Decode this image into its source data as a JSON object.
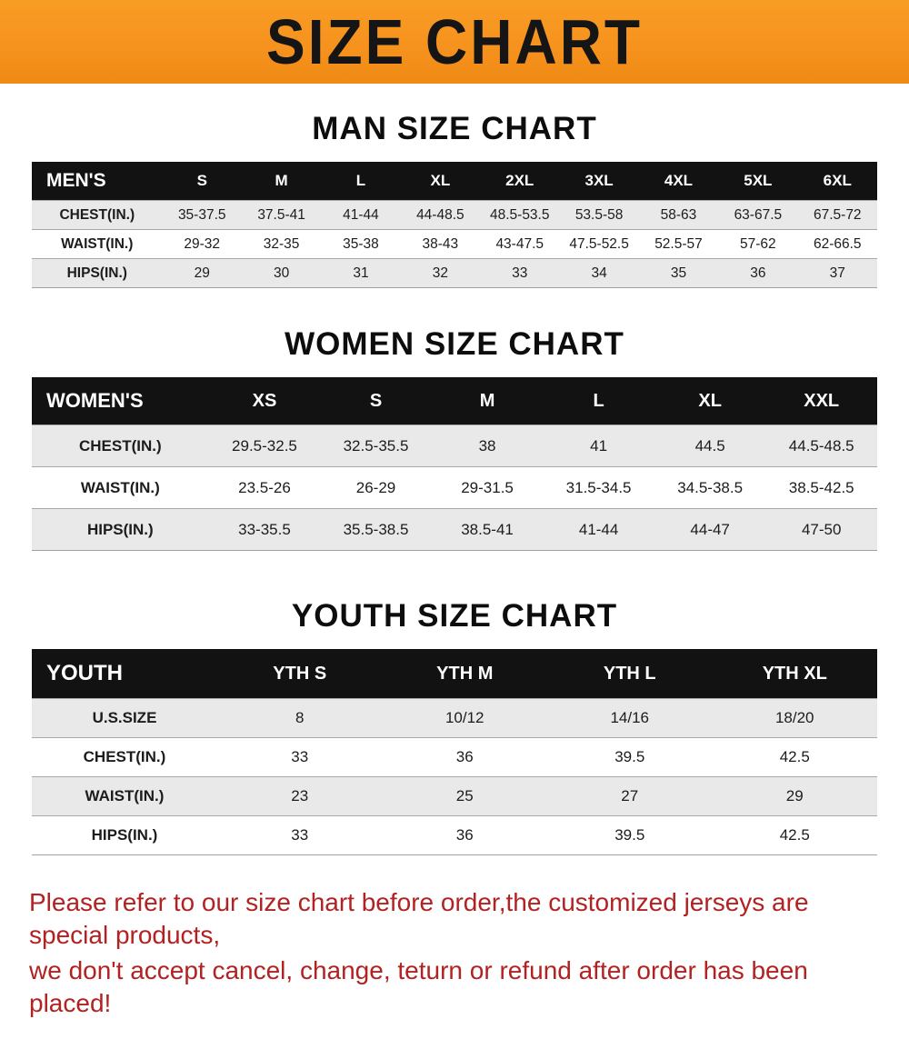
{
  "banner": {
    "title": "SIZE CHART",
    "bg_color": "#f6921e",
    "title_color": "#151515"
  },
  "chart_data": [
    {
      "type": "table",
      "title": "MAN SIZE CHART",
      "columns": [
        "MEN'S",
        "S",
        "M",
        "L",
        "XL",
        "2XL",
        "3XL",
        "4XL",
        "5XL",
        "6XL"
      ],
      "rows": [
        [
          "CHEST(IN.)",
          "35-37.5",
          "37.5-41",
          "41-44",
          "44-48.5",
          "48.5-53.5",
          "53.5-58",
          "58-63",
          "63-67.5",
          "67.5-72"
        ],
        [
          "WAIST(IN.)",
          "29-32",
          "32-35",
          "35-38",
          "38-43",
          "43-47.5",
          "47.5-52.5",
          "52.5-57",
          "57-62",
          "62-66.5"
        ],
        [
          "HIPS(IN.)",
          "29",
          "30",
          "31",
          "32",
          "33",
          "34",
          "35",
          "36",
          "37"
        ]
      ]
    },
    {
      "type": "table",
      "title": "WOMEN SIZE CHART",
      "columns": [
        "WOMEN'S",
        "XS",
        "S",
        "M",
        "L",
        "XL",
        "XXL"
      ],
      "rows": [
        [
          "CHEST(IN.)",
          "29.5-32.5",
          "32.5-35.5",
          "38",
          "41",
          "44.5",
          "44.5-48.5"
        ],
        [
          "WAIST(IN.)",
          "23.5-26",
          "26-29",
          "29-31.5",
          "31.5-34.5",
          "34.5-38.5",
          "38.5-42.5"
        ],
        [
          "HIPS(IN.)",
          "33-35.5",
          "35.5-38.5",
          "38.5-41",
          "41-44",
          "44-47",
          "47-50"
        ]
      ]
    },
    {
      "type": "table",
      "title": "YOUTH SIZE CHART",
      "columns": [
        "YOUTH",
        "YTH S",
        "YTH M",
        "YTH L",
        "YTH XL"
      ],
      "rows": [
        [
          "U.S.SIZE",
          "8",
          "10/12",
          "14/16",
          "18/20"
        ],
        [
          "CHEST(IN.)",
          "33",
          "36",
          "39.5",
          "42.5"
        ],
        [
          "WAIST(IN.)",
          "23",
          "25",
          "27",
          "29"
        ],
        [
          "HIPS(IN.)",
          "33",
          "36",
          "39.5",
          "42.5"
        ]
      ]
    }
  ],
  "footer": {
    "lines": [
      "Please refer to our size chart before order,the customized jerseys are special products,",
      "we don't accept cancel, change, teturn or refund after order has been placed!"
    ],
    "text_color": "#b22222"
  }
}
